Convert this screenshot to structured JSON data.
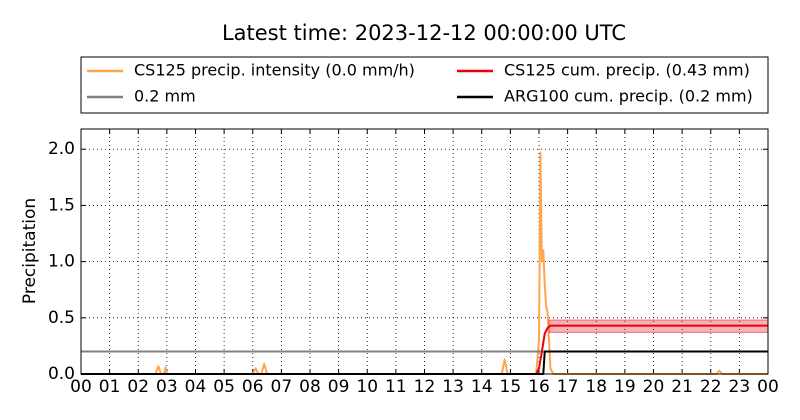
{
  "chart_data": {
    "type": "line",
    "title": "Latest time: 2023-12-12 00:00:00 UTC",
    "ylabel": "Precipitation",
    "xlim": [
      0,
      24
    ],
    "ylim": [
      0,
      2.18
    ],
    "grid": true,
    "legend": "top",
    "xticks": [
      {
        "value": 0,
        "label": "00"
      },
      {
        "value": 1,
        "label": "01"
      },
      {
        "value": 2,
        "label": "02"
      },
      {
        "value": 3,
        "label": "03"
      },
      {
        "value": 4,
        "label": "04"
      },
      {
        "value": 5,
        "label": "05"
      },
      {
        "value": 6,
        "label": "06"
      },
      {
        "value": 7,
        "label": "07"
      },
      {
        "value": 8,
        "label": "08"
      },
      {
        "value": 9,
        "label": "09"
      },
      {
        "value": 10,
        "label": "10"
      },
      {
        "value": 11,
        "label": "11"
      },
      {
        "value": 12,
        "label": "12"
      },
      {
        "value": 13,
        "label": "13"
      },
      {
        "value": 14,
        "label": "14"
      },
      {
        "value": 15,
        "label": "15"
      },
      {
        "value": 16,
        "label": "16"
      },
      {
        "value": 17,
        "label": "17"
      },
      {
        "value": 18,
        "label": "18"
      },
      {
        "value": 19,
        "label": "19"
      },
      {
        "value": 20,
        "label": "20"
      },
      {
        "value": 21,
        "label": "21"
      },
      {
        "value": 22,
        "label": "22"
      },
      {
        "value": 23,
        "label": "23"
      },
      {
        "value": 24,
        "label": "00"
      }
    ],
    "yticks": [
      {
        "value": 0,
        "label": "0.0"
      },
      {
        "value": 0.5,
        "label": "0.5"
      },
      {
        "value": 1,
        "label": "1.0"
      },
      {
        "value": 1.5,
        "label": "1.5"
      },
      {
        "value": 2,
        "label": "2.0"
      }
    ],
    "series": [
      {
        "name": "CS125 precip. intensity (0.0 mm/h)",
        "color": "#ffa64d",
        "width": 2,
        "x": [
          0,
          2.6,
          2.7,
          2.8,
          2.9,
          2.95,
          3.0,
          6.0,
          6.1,
          6.2,
          6.3,
          6.4,
          6.5,
          14.7,
          14.8,
          14.9,
          15.9,
          16.0,
          16.05,
          16.1,
          16.15,
          16.2,
          16.25,
          16.3,
          16.35,
          16.4,
          16.5,
          22.2,
          22.3,
          22.4,
          24
        ],
        "values": [
          0,
          0,
          0.07,
          0,
          0,
          0.06,
          0,
          0,
          0.05,
          0,
          0,
          0.09,
          0,
          0,
          0.13,
          0,
          0,
          0.3,
          1.97,
          1.0,
          1.1,
          0.8,
          0.6,
          0.55,
          0.3,
          0.05,
          0,
          0,
          0.03,
          0,
          0
        ]
      },
      {
        "name": "0.2 mm",
        "color": "#808080",
        "width": 2,
        "x": [
          0,
          24
        ],
        "values": [
          0.2,
          0.2
        ]
      },
      {
        "name": "CS125 cum. precip. (0.43 mm)",
        "color": "#e8000b",
        "width": 2,
        "x": [
          6.0,
          15.9,
          16.0,
          16.1,
          16.2,
          16.3,
          16.4,
          24
        ],
        "values": [
          0,
          0,
          0.05,
          0.2,
          0.36,
          0.41,
          0.43,
          0.43
        ],
        "band_x": [
          16.35,
          24
        ],
        "band_lower": [
          0.37,
          0.37
        ],
        "band_upper": [
          0.48,
          0.48
        ]
      },
      {
        "name": "ARG100 cum. precip. (0.2 mm)",
        "color": "#000000",
        "width": 2,
        "x": [
          0,
          16.15,
          16.2,
          24
        ],
        "values": [
          0,
          0,
          0.2,
          0.2
        ]
      }
    ]
  }
}
